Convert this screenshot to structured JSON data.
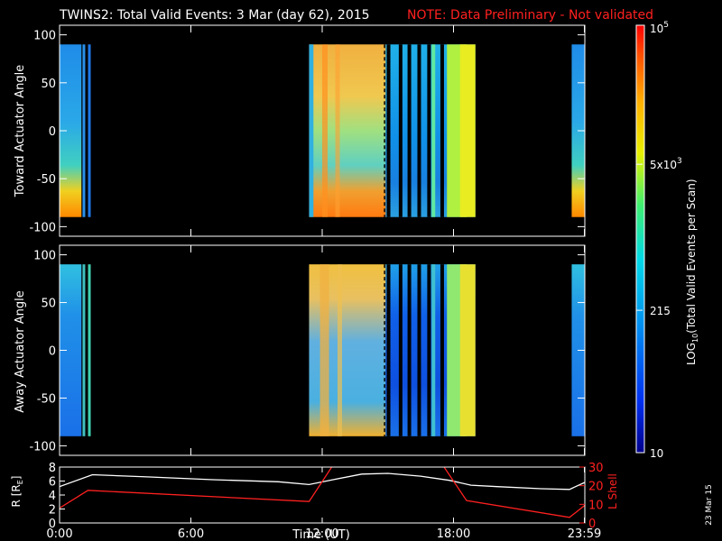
{
  "header": {
    "title": "TWINS2: Total Valid Events:  3 Mar (day  62), 2015",
    "note": "NOTE: Data Preliminary - Not validated"
  },
  "colors": {
    "background": "#000000",
    "axis": "#ffffff",
    "note": "#ff2020",
    "l_shell": "#ff2020",
    "r_line": "#ffffff"
  },
  "panels": {
    "top": {
      "ylabel": "Toward Actuator Angle"
    },
    "bottom": {
      "ylabel": "Away Actuator Angle"
    },
    "orbit": {
      "ylabel_left": "R [R",
      "ylabel_left_sub": "E",
      "ylabel_left_end": "]",
      "ylabel_right": "L Shell"
    },
    "xlabel": "Time (UT)"
  },
  "colorbar": {
    "label": "LOG",
    "label_sub": "10",
    "label_rest": "(Total Valid Events per Scan)",
    "ticks": [
      {
        "label": "10",
        "value": 10
      },
      {
        "label": "215",
        "value": 215
      },
      {
        "base": "5x10",
        "exp": "3",
        "value": 5000
      },
      {
        "base": "10",
        "exp": "5",
        "value": 100000
      }
    ]
  },
  "date_stamp": "23 Mar 15",
  "chart_data": [
    {
      "type": "heatmap",
      "name": "Toward Actuator Angle",
      "xlim": [
        0,
        24
      ],
      "ylim": [
        -110,
        110
      ],
      "yticks": [
        -100,
        -50,
        0,
        50,
        100
      ],
      "xticks": [
        {
          "label": "0:00",
          "value": 0
        },
        {
          "label": "6:00",
          "value": 6
        },
        {
          "label": "12:00",
          "value": 12
        },
        {
          "label": "18:00",
          "value": 18
        },
        {
          "label": "23:59",
          "value": 23.98
        }
      ],
      "data_extent": [
        -90,
        90
      ],
      "zlim": [
        10,
        100000
      ],
      "z_scale": "log"
    },
    {
      "type": "heatmap",
      "name": "Away Actuator Angle",
      "xlim": [
        0,
        24
      ],
      "ylim": [
        -110,
        110
      ],
      "yticks": [
        -100,
        -50,
        0,
        50,
        100
      ],
      "xticks": [
        {
          "label": "0:00",
          "value": 0
        },
        {
          "label": "6:00",
          "value": 6
        },
        {
          "label": "12:00",
          "value": 12
        },
        {
          "label": "18:00",
          "value": 18
        },
        {
          "label": "23:59",
          "value": 23.98
        }
      ],
      "data_extent": [
        -90,
        90
      ],
      "zlim": [
        10,
        100000
      ],
      "z_scale": "log"
    },
    {
      "type": "line",
      "ylim_left": [
        0,
        8
      ],
      "yticks_left": [
        0,
        2,
        4,
        6,
        8
      ],
      "ylim_right": [
        0,
        30
      ],
      "yticks_right": [
        0,
        10,
        20,
        30
      ],
      "xticks": [
        {
          "label": "0:00",
          "value": 0
        },
        {
          "label": "6:00",
          "value": 6
        },
        {
          "label": "12:00",
          "value": 12
        },
        {
          "label": "18:00",
          "value": 18
        },
        {
          "label": "23:59",
          "value": 23.98
        }
      ],
      "series": [
        {
          "axis": "left",
          "x": [
            0,
            1.5,
            4,
            7,
            10,
            11.4,
            12.5,
            13.8,
            15,
            16.5,
            17.8,
            18.8,
            20,
            22,
            23.3,
            24
          ],
          "y": [
            5.2,
            6.9,
            6.6,
            6.2,
            5.9,
            5.5,
            6.2,
            7.0,
            7.1,
            6.7,
            6.1,
            5.4,
            5.2,
            4.9,
            4.8,
            5.8
          ]
        },
        {
          "axis": "right",
          "x": [
            0,
            1.3,
            11.4,
            12.6,
            17.4,
            18.6,
            23.3,
            24
          ],
          "y": [
            8,
            17.5,
            11.5,
            33,
            33,
            12,
            3,
            9.5
          ]
        }
      ]
    }
  ]
}
